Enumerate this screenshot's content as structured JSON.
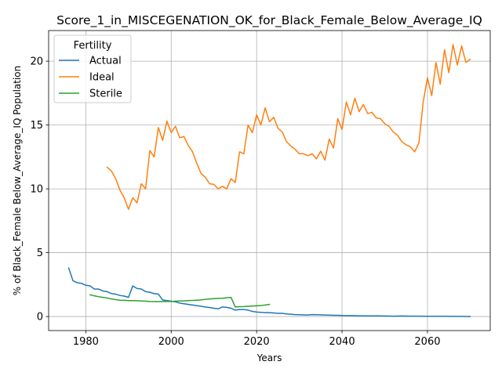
{
  "chart_data": {
    "type": "line",
    "title": "Score_1_in_MISCEGENATION_OK_for_Black_Female_Below_Average_IQ",
    "xlabel": "Years",
    "ylabel": "% of Black_Female Below_Average_IQ Population",
    "xlim": [
      1971.3,
      2074.7
    ],
    "ylim": [
      -1.1,
      22.4
    ],
    "xticks": [
      1980,
      2000,
      2020,
      2040,
      2060
    ],
    "yticks": [
      0,
      5,
      10,
      15,
      20
    ],
    "grid": true,
    "legend": {
      "title": "Fertility",
      "placement": "top-left"
    },
    "series": [
      {
        "name": "Actual",
        "color": "#1f77b4",
        "points": [
          [
            1976,
            3.8
          ],
          [
            1977,
            2.8
          ],
          [
            1978,
            2.65
          ],
          [
            1979,
            2.6
          ],
          [
            1980,
            2.45
          ],
          [
            1981,
            2.4
          ],
          [
            1982,
            2.15
          ],
          [
            1983,
            2.15
          ],
          [
            1984,
            2.0
          ],
          [
            1985,
            1.95
          ],
          [
            1986,
            1.8
          ],
          [
            1987,
            1.75
          ],
          [
            1988,
            1.65
          ],
          [
            1989,
            1.6
          ],
          [
            1990,
            1.5
          ],
          [
            1991,
            2.4
          ],
          [
            1992,
            2.2
          ],
          [
            1993,
            2.15
          ],
          [
            1994,
            1.95
          ],
          [
            1995,
            1.9
          ],
          [
            1996,
            1.8
          ],
          [
            1997,
            1.75
          ],
          [
            1998,
            1.3
          ],
          [
            1999,
            1.25
          ],
          [
            2000,
            1.2
          ],
          [
            2001,
            1.15
          ],
          [
            2002,
            1.05
          ],
          [
            2003,
            1.0
          ],
          [
            2004,
            0.95
          ],
          [
            2005,
            0.9
          ],
          [
            2006,
            0.85
          ],
          [
            2007,
            0.8
          ],
          [
            2008,
            0.75
          ],
          [
            2009,
            0.7
          ],
          [
            2010,
            0.65
          ],
          [
            2011,
            0.6
          ],
          [
            2012,
            0.75
          ],
          [
            2013,
            0.72
          ],
          [
            2014,
            0.65
          ],
          [
            2015,
            0.5
          ],
          [
            2016,
            0.55
          ],
          [
            2017,
            0.55
          ],
          [
            2018,
            0.5
          ],
          [
            2019,
            0.4
          ],
          [
            2020,
            0.35
          ],
          [
            2021,
            0.33
          ],
          [
            2022,
            0.3
          ],
          [
            2023,
            0.3
          ],
          [
            2024,
            0.28
          ],
          [
            2025,
            0.25
          ],
          [
            2026,
            0.25
          ],
          [
            2027,
            0.2
          ],
          [
            2028,
            0.18
          ],
          [
            2029,
            0.15
          ],
          [
            2030,
            0.14
          ],
          [
            2031,
            0.13
          ],
          [
            2032,
            0.12
          ],
          [
            2033,
            0.15
          ],
          [
            2034,
            0.14
          ],
          [
            2035,
            0.13
          ],
          [
            2036,
            0.12
          ],
          [
            2037,
            0.11
          ],
          [
            2038,
            0.1
          ],
          [
            2039,
            0.1
          ],
          [
            2040,
            0.08
          ],
          [
            2042,
            0.07
          ],
          [
            2044,
            0.06
          ],
          [
            2046,
            0.05
          ],
          [
            2048,
            0.05
          ],
          [
            2050,
            0.04
          ],
          [
            2052,
            0.03
          ],
          [
            2054,
            0.04
          ],
          [
            2056,
            0.03
          ],
          [
            2058,
            0.03
          ],
          [
            2060,
            0.02
          ],
          [
            2062,
            0.02
          ],
          [
            2064,
            0.02
          ],
          [
            2066,
            0.01
          ],
          [
            2068,
            0.01
          ],
          [
            2070,
            0.0
          ]
        ]
      },
      {
        "name": "Ideal",
        "color": "#ff7f0e",
        "points": [
          [
            1985,
            11.7
          ],
          [
            1986,
            11.4
          ],
          [
            1987,
            10.8
          ],
          [
            1988,
            9.9
          ],
          [
            1989,
            9.3
          ],
          [
            1990,
            8.4
          ],
          [
            1991,
            9.3
          ],
          [
            1992,
            8.9
          ],
          [
            1993,
            10.4
          ],
          [
            1994,
            10.0
          ],
          [
            1995,
            13.0
          ],
          [
            1996,
            12.5
          ],
          [
            1997,
            14.8
          ],
          [
            1998,
            13.8
          ],
          [
            1999,
            15.3
          ],
          [
            2000,
            14.4
          ],
          [
            2001,
            14.9
          ],
          [
            2002,
            14.0
          ],
          [
            2003,
            14.1
          ],
          [
            2004,
            13.4
          ],
          [
            2005,
            12.9
          ],
          [
            2006,
            12.0
          ],
          [
            2007,
            11.2
          ],
          [
            2008,
            10.9
          ],
          [
            2009,
            10.4
          ],
          [
            2010,
            10.35
          ],
          [
            2011,
            10.0
          ],
          [
            2012,
            10.2
          ],
          [
            2013,
            10.0
          ],
          [
            2014,
            10.8
          ],
          [
            2015,
            10.5
          ],
          [
            2016,
            12.9
          ],
          [
            2017,
            12.75
          ],
          [
            2018,
            15.0
          ],
          [
            2019,
            14.4
          ],
          [
            2020,
            15.8
          ],
          [
            2021,
            15.0
          ],
          [
            2022,
            16.35
          ],
          [
            2023,
            15.25
          ],
          [
            2024,
            15.6
          ],
          [
            2025,
            14.75
          ],
          [
            2026,
            14.45
          ],
          [
            2027,
            13.7
          ],
          [
            2028,
            13.35
          ],
          [
            2029,
            13.1
          ],
          [
            2030,
            12.75
          ],
          [
            2031,
            12.75
          ],
          [
            2032,
            12.6
          ],
          [
            2033,
            12.75
          ],
          [
            2034,
            12.35
          ],
          [
            2035,
            12.95
          ],
          [
            2036,
            12.25
          ],
          [
            2037,
            13.9
          ],
          [
            2038,
            13.2
          ],
          [
            2039,
            15.5
          ],
          [
            2040,
            14.65
          ],
          [
            2041,
            16.8
          ],
          [
            2042,
            15.8
          ],
          [
            2043,
            17.1
          ],
          [
            2044,
            16.05
          ],
          [
            2045,
            16.6
          ],
          [
            2046,
            15.9
          ],
          [
            2047,
            16.0
          ],
          [
            2048,
            15.55
          ],
          [
            2049,
            15.5
          ],
          [
            2050,
            15.1
          ],
          [
            2051,
            14.9
          ],
          [
            2052,
            14.45
          ],
          [
            2053,
            14.2
          ],
          [
            2054,
            13.7
          ],
          [
            2055,
            13.45
          ],
          [
            2056,
            13.3
          ],
          [
            2057,
            12.9
          ],
          [
            2058,
            13.6
          ],
          [
            2059,
            16.8
          ],
          [
            2060,
            18.7
          ],
          [
            2061,
            17.3
          ],
          [
            2062,
            19.9
          ],
          [
            2063,
            18.2
          ],
          [
            2064,
            20.9
          ],
          [
            2065,
            19.1
          ],
          [
            2066,
            21.3
          ],
          [
            2067,
            19.7
          ],
          [
            2068,
            21.2
          ],
          [
            2069,
            19.9
          ],
          [
            2070,
            20.15
          ]
        ]
      },
      {
        "name": "Sterile",
        "color": "#2ca02c",
        "points": [
          [
            1981,
            1.7
          ],
          [
            1982,
            1.62
          ],
          [
            1983,
            1.55
          ],
          [
            1984,
            1.5
          ],
          [
            1985,
            1.45
          ],
          [
            1986,
            1.38
          ],
          [
            1987,
            1.32
          ],
          [
            1988,
            1.28
          ],
          [
            1989,
            1.27
          ],
          [
            1990,
            1.25
          ],
          [
            1991,
            1.25
          ],
          [
            1992,
            1.24
          ],
          [
            1993,
            1.22
          ],
          [
            1994,
            1.2
          ],
          [
            1995,
            1.18
          ],
          [
            1996,
            1.17
          ],
          [
            1997,
            1.17
          ],
          [
            1998,
            1.18
          ],
          [
            1999,
            1.18
          ],
          [
            2000,
            1.18
          ],
          [
            2001,
            1.2
          ],
          [
            2002,
            1.22
          ],
          [
            2003,
            1.23
          ],
          [
            2004,
            1.25
          ],
          [
            2005,
            1.26
          ],
          [
            2006,
            1.28
          ],
          [
            2007,
            1.3
          ],
          [
            2008,
            1.35
          ],
          [
            2009,
            1.38
          ],
          [
            2010,
            1.4
          ],
          [
            2011,
            1.42
          ],
          [
            2012,
            1.43
          ],
          [
            2013,
            1.47
          ],
          [
            2014,
            1.5
          ],
          [
            2015,
            0.75
          ],
          [
            2016,
            0.77
          ],
          [
            2017,
            0.78
          ],
          [
            2018,
            0.8
          ],
          [
            2019,
            0.82
          ],
          [
            2020,
            0.84
          ],
          [
            2021,
            0.86
          ],
          [
            2022,
            0.9
          ],
          [
            2023,
            0.95
          ]
        ]
      }
    ]
  }
}
